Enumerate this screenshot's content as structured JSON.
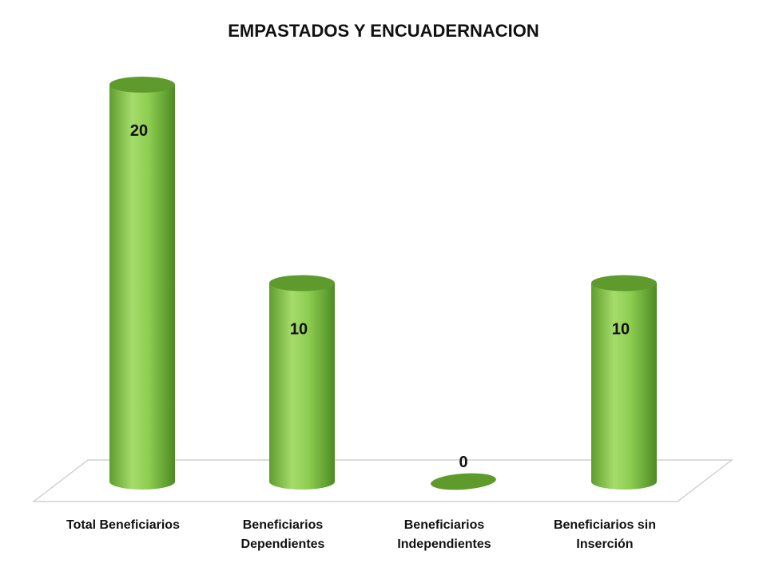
{
  "chart_data": {
    "type": "bar",
    "title": "EMPASTADOS Y ENCUADERNACION",
    "categories": [
      [
        "Total Beneficiarios"
      ],
      [
        "Beneficiarios",
        "Dependientes"
      ],
      [
        "Beneficiarios",
        "Independientes"
      ],
      [
        "Beneficiarios sin",
        "Inserción"
      ]
    ],
    "values": [
      20,
      10,
      0,
      10
    ],
    "ylim": [
      0,
      20
    ],
    "grid": false,
    "legend": "none",
    "bar_color": "#7CC142",
    "bar_top_color": "#5E9A2C"
  }
}
